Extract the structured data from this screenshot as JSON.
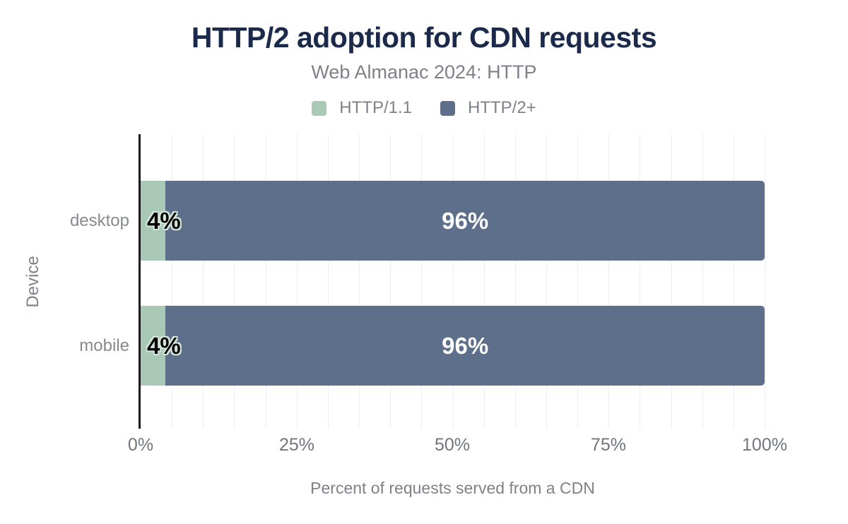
{
  "chart_data": {
    "type": "bar",
    "orientation": "horizontal",
    "stacked": true,
    "title": "HTTP/2 adoption for CDN requests",
    "subtitle": "Web Almanac 2024: HTTP",
    "categories": [
      "desktop",
      "mobile"
    ],
    "series": [
      {
        "name": "HTTP/1.1",
        "color": "#a9c8b6",
        "values": [
          4,
          4
        ],
        "labels": [
          "4%",
          "4%"
        ]
      },
      {
        "name": "HTTP/2+",
        "color": "#5e6f8b",
        "values": [
          96,
          96
        ],
        "labels": [
          "96%",
          "96%"
        ]
      }
    ],
    "xlabel": "Percent of requests served from a CDN",
    "ylabel": "Device",
    "xticks": [
      "0%",
      "25%",
      "50%",
      "75%",
      "100%"
    ],
    "xlim": [
      0,
      100
    ],
    "grid": {
      "minor_step_pct": 5,
      "color": "#ededed"
    },
    "legend_position": "top"
  },
  "style": {
    "title_color": "#1b2a4a",
    "text_color": "#7d8289",
    "axis_line_color": "#1c1c1c",
    "value_label_on_light": "#000000",
    "value_label_on_dark": "#ffffff",
    "value_label_halo": "#d3e5d9",
    "background": "#ffffff"
  }
}
